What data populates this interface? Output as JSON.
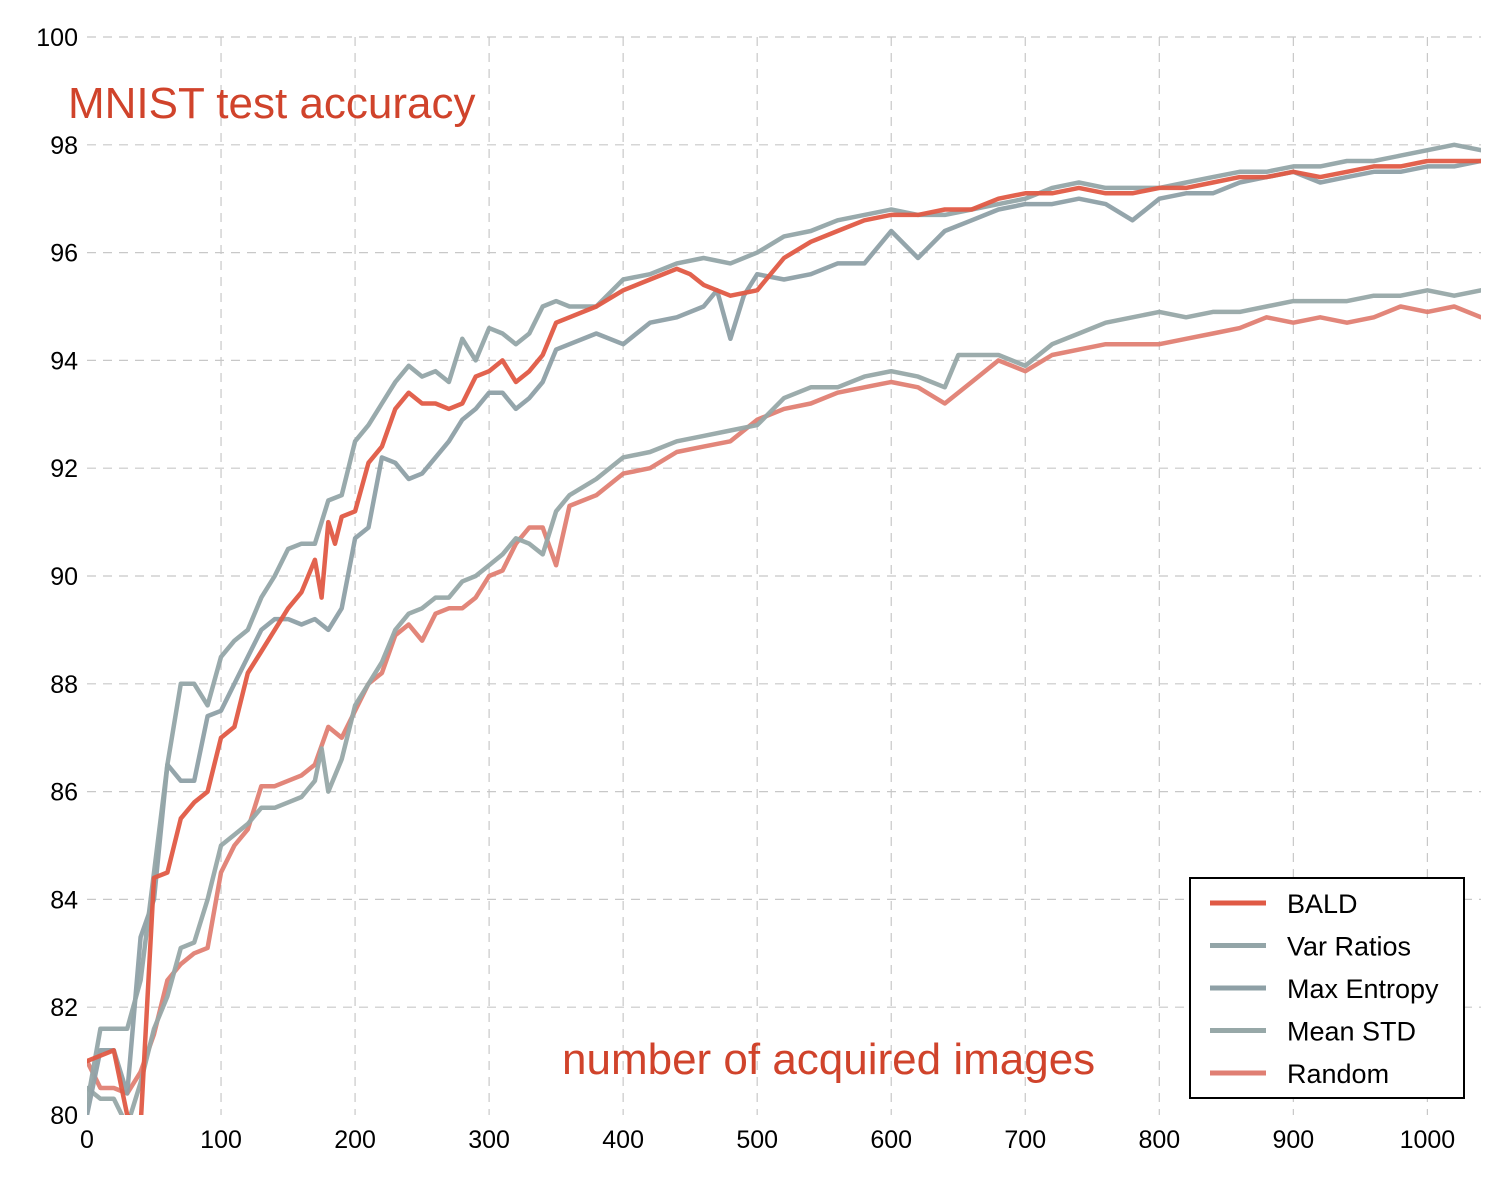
{
  "chart_data": {
    "type": "line",
    "title": "MNIST test accuracy",
    "xlabel": "number of acquired images",
    "ylabel": "",
    "xlim": [
      0,
      1040
    ],
    "ylim": [
      80,
      100
    ],
    "xticks": [
      "0",
      "100",
      "200",
      "300",
      "400",
      "500",
      "600",
      "700",
      "800",
      "900",
      "1000"
    ],
    "yticks": [
      "80",
      "82",
      "84",
      "86",
      "88",
      "90",
      "92",
      "94",
      "96",
      "98",
      "100"
    ],
    "grid": true,
    "legend_position": "bottom-right",
    "title_color": "#d0432b",
    "series": [
      {
        "name": "BALD",
        "color": "#e05a45",
        "x": [
          0,
          20,
          30,
          40,
          50,
          60,
          70,
          80,
          90,
          100,
          110,
          120,
          130,
          140,
          150,
          160,
          170,
          175,
          180,
          185,
          190,
          200,
          210,
          220,
          230,
          240,
          250,
          260,
          270,
          280,
          290,
          300,
          310,
          320,
          330,
          340,
          350,
          360,
          380,
          400,
          420,
          440,
          450,
          460,
          470,
          480,
          500,
          520,
          540,
          560,
          580,
          600,
          620,
          640,
          660,
          680,
          700,
          720,
          740,
          760,
          780,
          800,
          820,
          840,
          860,
          880,
          900,
          920,
          940,
          960,
          980,
          1000,
          1020,
          1040
        ],
        "y": [
          81.0,
          81.2,
          80.0,
          79.8,
          84.4,
          84.5,
          85.5,
          85.8,
          86.0,
          87.0,
          87.2,
          88.2,
          88.6,
          89.0,
          89.4,
          89.7,
          90.3,
          89.6,
          91.0,
          90.6,
          91.1,
          91.2,
          92.1,
          92.4,
          93.1,
          93.4,
          93.2,
          93.2,
          93.1,
          93.2,
          93.7,
          93.8,
          94.0,
          93.6,
          93.8,
          94.1,
          94.7,
          94.8,
          95.0,
          95.3,
          95.5,
          95.7,
          95.6,
          95.4,
          95.3,
          95.2,
          95.3,
          95.9,
          96.2,
          96.4,
          96.6,
          96.7,
          96.7,
          96.8,
          96.8,
          97.0,
          97.1,
          97.1,
          97.2,
          97.1,
          97.1,
          97.2,
          97.2,
          97.3,
          97.4,
          97.4,
          97.5,
          97.4,
          97.5,
          97.6,
          97.6,
          97.7,
          97.7,
          97.7
        ]
      },
      {
        "name": "Var Ratios",
        "color": "#93a5a8",
        "x": [
          0,
          10,
          20,
          30,
          40,
          50,
          60,
          70,
          80,
          90,
          100,
          110,
          120,
          130,
          140,
          150,
          160,
          170,
          180,
          190,
          200,
          210,
          220,
          230,
          240,
          250,
          260,
          270,
          280,
          290,
          300,
          310,
          320,
          330,
          340,
          350,
          360,
          380,
          400,
          420,
          440,
          460,
          480,
          500,
          520,
          540,
          560,
          580,
          600,
          620,
          640,
          660,
          680,
          700,
          720,
          740,
          760,
          780,
          800,
          820,
          840,
          860,
          880,
          900,
          920,
          940,
          960,
          980,
          1000,
          1020,
          1040
        ],
        "y": [
          80.2,
          81.6,
          81.6,
          81.6,
          82.5,
          84.5,
          86.5,
          88.0,
          88.0,
          87.6,
          88.5,
          88.8,
          89.0,
          89.6,
          90.0,
          90.5,
          90.6,
          90.6,
          91.4,
          91.5,
          92.5,
          92.8,
          93.2,
          93.6,
          93.9,
          93.7,
          93.8,
          93.6,
          94.4,
          94.0,
          94.6,
          94.5,
          94.3,
          94.5,
          95.0,
          95.1,
          95.0,
          95.0,
          95.5,
          95.6,
          95.8,
          95.9,
          95.8,
          96.0,
          96.3,
          96.4,
          96.6,
          96.7,
          96.8,
          96.7,
          96.7,
          96.8,
          96.9,
          97.0,
          97.2,
          97.3,
          97.2,
          97.2,
          97.2,
          97.3,
          97.4,
          97.5,
          97.5,
          97.6,
          97.6,
          97.7,
          97.7,
          97.8,
          97.9,
          98.0,
          97.9
        ]
      },
      {
        "name": "Max Entropy",
        "color": "#8ea0a6",
        "x": [
          0,
          10,
          20,
          30,
          40,
          50,
          60,
          70,
          80,
          90,
          100,
          110,
          120,
          130,
          140,
          150,
          160,
          170,
          180,
          190,
          200,
          210,
          220,
          230,
          240,
          250,
          260,
          270,
          280,
          290,
          300,
          310,
          320,
          330,
          340,
          350,
          360,
          380,
          400,
          420,
          440,
          460,
          470,
          480,
          490,
          500,
          520,
          540,
          560,
          580,
          600,
          620,
          640,
          660,
          680,
          700,
          720,
          740,
          760,
          780,
          800,
          820,
          840,
          860,
          880,
          900,
          920,
          940,
          960,
          980,
          1000,
          1020,
          1040
        ],
        "y": [
          80.0,
          81.2,
          81.2,
          80.4,
          83.3,
          84.0,
          86.5,
          86.2,
          86.2,
          87.4,
          87.5,
          88.0,
          88.5,
          89.0,
          89.2,
          89.2,
          89.1,
          89.2,
          89.0,
          89.4,
          90.7,
          90.9,
          92.2,
          92.1,
          91.8,
          91.9,
          92.2,
          92.5,
          92.9,
          93.1,
          93.4,
          93.4,
          93.1,
          93.3,
          93.6,
          94.2,
          94.3,
          94.5,
          94.3,
          94.7,
          94.8,
          95.0,
          95.3,
          94.4,
          95.2,
          95.6,
          95.5,
          95.6,
          95.8,
          95.8,
          96.4,
          95.9,
          96.4,
          96.6,
          96.8,
          96.9,
          96.9,
          97.0,
          96.9,
          96.6,
          97.0,
          97.1,
          97.1,
          97.3,
          97.4,
          97.5,
          97.3,
          97.4,
          97.5,
          97.5,
          97.6,
          97.6,
          97.7
        ]
      },
      {
        "name": "Mean STD",
        "color": "#97a8a8",
        "x": [
          0,
          10,
          20,
          30,
          40,
          50,
          60,
          70,
          80,
          90,
          100,
          110,
          120,
          130,
          140,
          150,
          160,
          170,
          175,
          180,
          190,
          200,
          210,
          220,
          230,
          240,
          250,
          260,
          270,
          280,
          290,
          300,
          310,
          320,
          330,
          340,
          350,
          360,
          380,
          400,
          420,
          440,
          460,
          480,
          500,
          520,
          540,
          560,
          580,
          600,
          620,
          640,
          650,
          660,
          680,
          700,
          720,
          740,
          760,
          780,
          800,
          820,
          840,
          860,
          880,
          900,
          920,
          940,
          960,
          980,
          1000,
          1020,
          1040
        ],
        "y": [
          80.5,
          80.3,
          80.3,
          79.8,
          80.6,
          81.6,
          82.2,
          83.1,
          83.2,
          84.0,
          85.0,
          85.2,
          85.4,
          85.7,
          85.7,
          85.8,
          85.9,
          86.2,
          86.8,
          86.0,
          86.6,
          87.6,
          88.0,
          88.4,
          89.0,
          89.3,
          89.4,
          89.6,
          89.6,
          89.9,
          90.0,
          90.2,
          90.4,
          90.7,
          90.6,
          90.4,
          91.2,
          91.5,
          91.8,
          92.2,
          92.3,
          92.5,
          92.6,
          92.7,
          92.8,
          93.3,
          93.5,
          93.5,
          93.7,
          93.8,
          93.7,
          93.5,
          94.1,
          94.1,
          94.1,
          93.9,
          94.3,
          94.5,
          94.7,
          94.8,
          94.9,
          94.8,
          94.9,
          94.9,
          95.0,
          95.1,
          95.1,
          95.1,
          95.2,
          95.2,
          95.3,
          95.2,
          95.3
        ]
      },
      {
        "name": "Random",
        "color": "#e07f73",
        "x": [
          0,
          10,
          20,
          30,
          40,
          50,
          60,
          70,
          80,
          90,
          100,
          110,
          120,
          130,
          140,
          150,
          160,
          170,
          180,
          190,
          200,
          210,
          220,
          230,
          240,
          250,
          260,
          270,
          280,
          290,
          300,
          310,
          320,
          330,
          340,
          350,
          360,
          380,
          400,
          420,
          440,
          460,
          480,
          500,
          520,
          540,
          560,
          580,
          600,
          620,
          640,
          660,
          680,
          700,
          720,
          740,
          760,
          780,
          800,
          820,
          840,
          860,
          880,
          900,
          920,
          940,
          960,
          980,
          1000,
          1020,
          1040
        ],
        "y": [
          81.0,
          80.5,
          80.5,
          80.4,
          80.8,
          81.5,
          82.5,
          82.8,
          83.0,
          83.1,
          84.5,
          85.0,
          85.3,
          86.1,
          86.1,
          86.2,
          86.3,
          86.5,
          87.2,
          87.0,
          87.5,
          88.0,
          88.2,
          88.9,
          89.1,
          88.8,
          89.3,
          89.4,
          89.4,
          89.6,
          90.0,
          90.1,
          90.6,
          90.9,
          90.9,
          90.2,
          91.3,
          91.5,
          91.9,
          92.0,
          92.3,
          92.4,
          92.5,
          92.9,
          93.1,
          93.2,
          93.4,
          93.5,
          93.6,
          93.5,
          93.2,
          93.6,
          94.0,
          93.8,
          94.1,
          94.2,
          94.3,
          94.3,
          94.3,
          94.4,
          94.5,
          94.6,
          94.8,
          94.7,
          94.8,
          94.7,
          94.8,
          95.0,
          94.9,
          95.0,
          94.8
        ]
      }
    ]
  }
}
